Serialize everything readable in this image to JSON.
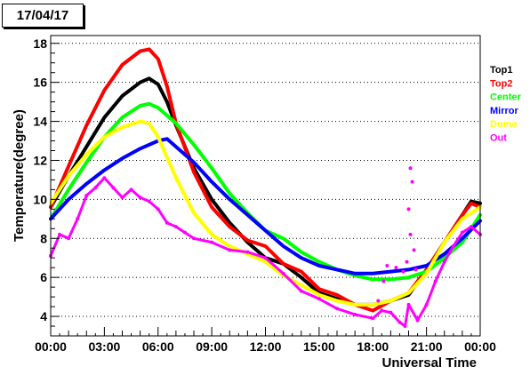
{
  "title": "17/04/17",
  "chart_data": {
    "type": "line",
    "title": "17/04/17",
    "xlabel": "Universal Time",
    "ylabel": "Temperature(degree)",
    "xlim": [
      0,
      24
    ],
    "ylim": [
      3.0,
      18.4
    ],
    "x_ticks": [
      "00:00",
      "03:00",
      "06:00",
      "09:00",
      "12:00",
      "15:00",
      "18:00",
      "21:00",
      "00:00"
    ],
    "y_ticks": [
      4,
      6,
      8,
      10,
      12,
      14,
      16,
      18
    ],
    "grid": "horizontal dotted",
    "legend_position": "right",
    "series": [
      {
        "name": "Top1",
        "color": "#000000",
        "x": [
          0,
          1,
          2,
          3,
          4,
          5,
          5.5,
          6,
          6.5,
          7,
          8,
          9,
          10,
          11,
          12,
          13,
          14,
          15,
          16,
          17,
          18,
          19,
          20,
          21,
          22,
          23,
          23.5,
          24
        ],
        "y": [
          9.6,
          11.2,
          12.7,
          14.2,
          15.3,
          16.0,
          16.2,
          15.9,
          15.0,
          13.8,
          11.6,
          10.0,
          8.8,
          7.8,
          7.0,
          6.7,
          6.0,
          5.2,
          4.9,
          4.6,
          4.6,
          4.8,
          5.1,
          6.4,
          7.8,
          9.2,
          9.9,
          9.8
        ]
      },
      {
        "name": "Top2",
        "color": "#ff0000",
        "x": [
          0,
          1,
          2,
          3,
          4,
          5,
          5.5,
          6,
          6.5,
          7,
          8,
          9,
          10,
          11,
          12,
          13,
          14,
          15,
          16,
          17,
          18,
          19,
          20,
          21,
          22,
          23,
          23.5,
          24
        ],
        "y": [
          9.6,
          11.7,
          13.8,
          15.6,
          16.9,
          17.6,
          17.7,
          17.2,
          15.8,
          13.9,
          11.4,
          9.6,
          8.6,
          7.9,
          7.6,
          6.7,
          6.3,
          5.4,
          5.1,
          4.6,
          4.3,
          4.8,
          5.2,
          6.4,
          7.8,
          9.2,
          9.8,
          9.6
        ]
      },
      {
        "name": "Center",
        "color": "#00ff00",
        "x": [
          0,
          1,
          2,
          3,
          4,
          5,
          5.5,
          6,
          7,
          8,
          9,
          10,
          11,
          12,
          13,
          14,
          15,
          16,
          17,
          18,
          19,
          20,
          21,
          22,
          23,
          24
        ],
        "y": [
          9.0,
          10.5,
          11.9,
          13.2,
          14.2,
          14.8,
          14.9,
          14.7,
          13.9,
          12.8,
          11.6,
          10.3,
          9.3,
          8.4,
          8.0,
          7.3,
          6.8,
          6.4,
          6.1,
          5.9,
          5.9,
          6.0,
          6.3,
          7.0,
          7.8,
          9.2
        ]
      },
      {
        "name": "Mirror",
        "color": "#0000ff",
        "x": [
          0,
          1,
          2,
          3,
          4,
          5,
          6,
          6.5,
          7,
          8,
          9,
          10,
          11,
          12,
          13,
          14,
          15,
          16,
          17,
          18,
          19,
          20,
          21,
          22,
          23,
          24
        ],
        "y": [
          9.0,
          10.0,
          10.8,
          11.5,
          12.1,
          12.6,
          13.0,
          13.1,
          12.7,
          11.9,
          10.9,
          10.0,
          9.2,
          8.4,
          7.6,
          7.0,
          6.6,
          6.4,
          6.2,
          6.2,
          6.3,
          6.4,
          6.6,
          7.2,
          8.0,
          8.9
        ]
      },
      {
        "name": "Dome",
        "color": "#ffff00",
        "x": [
          0,
          1,
          2,
          3,
          4,
          5,
          5.5,
          6,
          7,
          8,
          9,
          10,
          11,
          12,
          13,
          14,
          15,
          16,
          17,
          18,
          19,
          20,
          21,
          22,
          23,
          24
        ],
        "y": [
          9.8,
          11.2,
          12.3,
          13.2,
          13.7,
          14.0,
          13.9,
          13.2,
          11.1,
          9.3,
          8.2,
          7.6,
          7.2,
          6.8,
          6.1,
          5.6,
          5.1,
          4.8,
          4.6,
          4.6,
          4.8,
          5.2,
          6.2,
          7.8,
          9.0,
          9.6
        ]
      },
      {
        "name": "Out",
        "color": "#ff00ff",
        "x": [
          0,
          0.5,
          1,
          1.5,
          2,
          2.5,
          3,
          3.5,
          4,
          4.5,
          5,
          5.5,
          6,
          6.5,
          7,
          7.5,
          8,
          9,
          10,
          11,
          12,
          13,
          14,
          15,
          16,
          17,
          18,
          18.5,
          19,
          19.5,
          19.8,
          20,
          20.5,
          21,
          21.5,
          22,
          22.5,
          23,
          23.5,
          24
        ],
        "y": [
          7.1,
          8.2,
          8.0,
          9.0,
          10.2,
          10.6,
          11.1,
          10.6,
          10.1,
          10.5,
          10.1,
          9.9,
          9.5,
          8.8,
          8.6,
          8.3,
          8.0,
          7.8,
          7.4,
          7.3,
          7.0,
          6.2,
          5.3,
          4.9,
          4.4,
          4.1,
          3.9,
          4.3,
          4.2,
          3.7,
          3.5,
          4.6,
          3.8,
          4.6,
          5.8,
          6.8,
          7.6,
          8.3,
          8.6,
          8.2
        ]
      }
    ],
    "out_spikes": [
      {
        "x": 18.3,
        "y": 4.8
      },
      {
        "x": 18.6,
        "y": 5.8
      },
      {
        "x": 18.8,
        "y": 6.6
      },
      {
        "x": 19.3,
        "y": 6.5
      },
      {
        "x": 19.7,
        "y": 6.3
      },
      {
        "x": 20.1,
        "y": 11.6
      },
      {
        "x": 20.2,
        "y": 10.9
      },
      {
        "x": 20.0,
        "y": 9.5
      },
      {
        "x": 20.1,
        "y": 8.2
      },
      {
        "x": 20.3,
        "y": 7.4
      },
      {
        "x": 19.9,
        "y": 6.8
      },
      {
        "x": 20.4,
        "y": 6.4
      }
    ]
  }
}
